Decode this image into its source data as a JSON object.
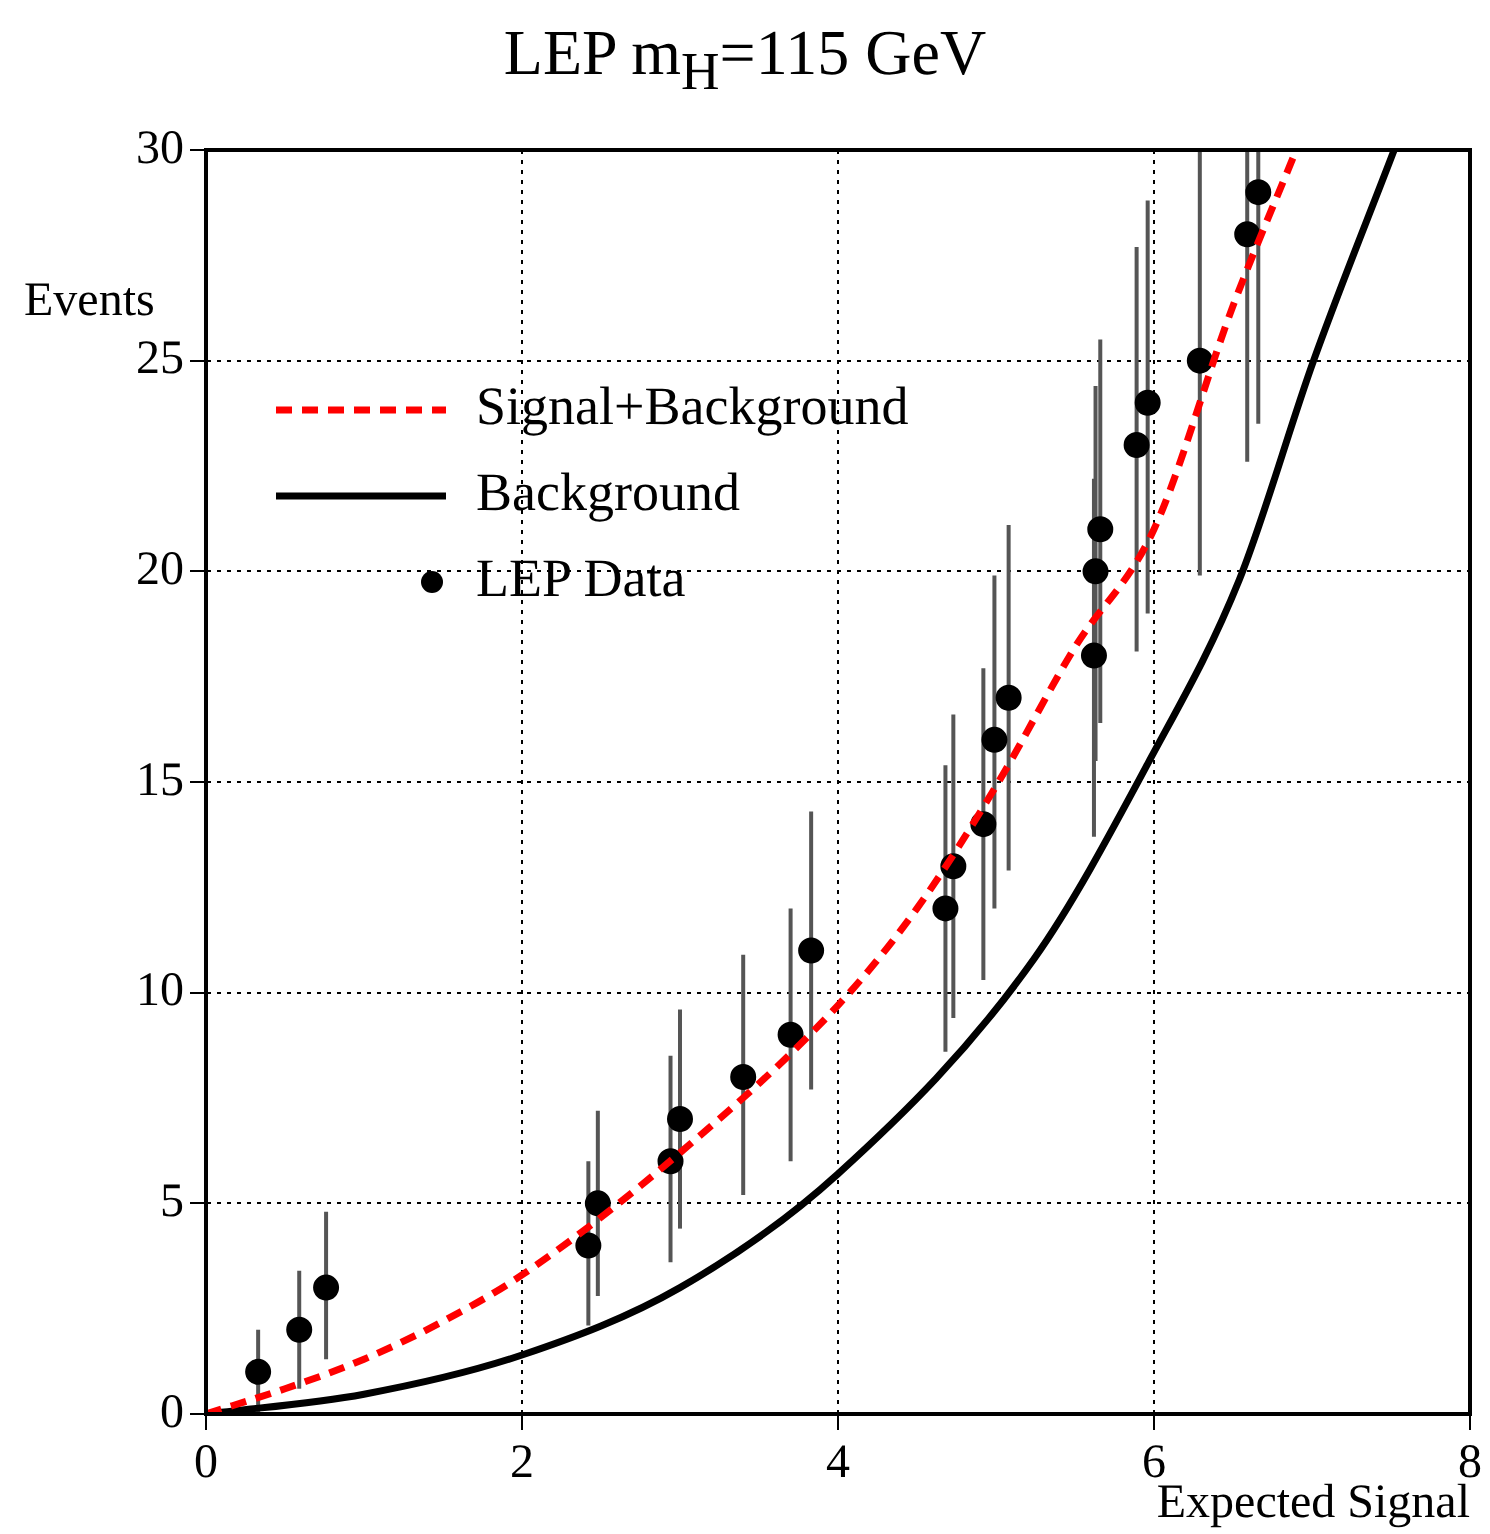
{
  "chart_data": {
    "type": "scatter",
    "title": "LEP m$_{H}$=115 GeV",
    "xlabel": "Expected Signal",
    "ylabel": "Events",
    "xlim": [
      0,
      8
    ],
    "ylim": [
      0,
      30
    ],
    "xticks": [
      0,
      2,
      4,
      6,
      8
    ],
    "yticks": [
      0,
      5,
      10,
      15,
      20,
      25,
      30
    ],
    "grid": true,
    "legend": "top left",
    "series": [
      {
        "name": "Signal+Background",
        "type": "line",
        "color": "#ff0000",
        "line_style": "dashed",
        "marker": "none",
        "x": [
          0,
          0.5,
          1,
          1.5,
          2,
          3,
          4,
          4.5,
          5,
          5.5,
          6,
          6.5,
          6.9
        ],
        "values": [
          0,
          0.6,
          1.3,
          2.2,
          3.3,
          6.2,
          9.7,
          12,
          14.9,
          18.2,
          21,
          26.3,
          30
        ]
      },
      {
        "name": "Background",
        "type": "line",
        "color": "#000000",
        "line_style": "solid",
        "marker": "none",
        "x": [
          0,
          1,
          2,
          3,
          4,
          5.24,
          5.97,
          6.54,
          7.01,
          7.52
        ],
        "values": [
          0,
          0.47,
          1.4,
          3,
          5.7,
          10.8,
          15.5,
          19.8,
          25,
          30
        ]
      },
      {
        "name": "LEP Data",
        "color": "#000000",
        "marker": "circle",
        "x": [
          0.33,
          0.59,
          0.76,
          2.42,
          2.48,
          2.94,
          3.0,
          3.4,
          3.7,
          3.83,
          4.68,
          4.73,
          4.92,
          4.99,
          5.08,
          5.62,
          5.63,
          5.66,
          5.89,
          5.96,
          6.29,
          6.59,
          6.66
        ],
        "values": [
          1,
          2,
          3,
          4,
          5,
          6,
          7,
          8,
          9,
          11,
          12,
          13,
          14,
          16,
          17,
          18,
          20,
          21,
          23,
          24,
          25,
          28,
          29
        ],
        "errors": [
          [
            0,
            2
          ],
          [
            0.6,
            3.4
          ],
          [
            1.3,
            4.8
          ],
          [
            2.1,
            6
          ],
          [
            2.8,
            7.2
          ],
          [
            3.6,
            8.5
          ],
          [
            4.4,
            9.6
          ],
          [
            5.2,
            10.9
          ],
          [
            6,
            12
          ],
          [
            7.7,
            14.3
          ],
          [
            8.6,
            15.4
          ],
          [
            9.4,
            16.6
          ],
          [
            10.3,
            17.7
          ],
          [
            12,
            19.9
          ],
          [
            12.9,
            21.1
          ],
          [
            13.7,
            22.2
          ],
          [
            15.5,
            24.4
          ],
          [
            16.4,
            25.5
          ],
          [
            18.1,
            27.7
          ],
          [
            19,
            28.8
          ],
          [
            19.9,
            30
          ],
          [
            22.6,
            30
          ],
          [
            23.5,
            30
          ]
        ]
      }
    ]
  }
}
